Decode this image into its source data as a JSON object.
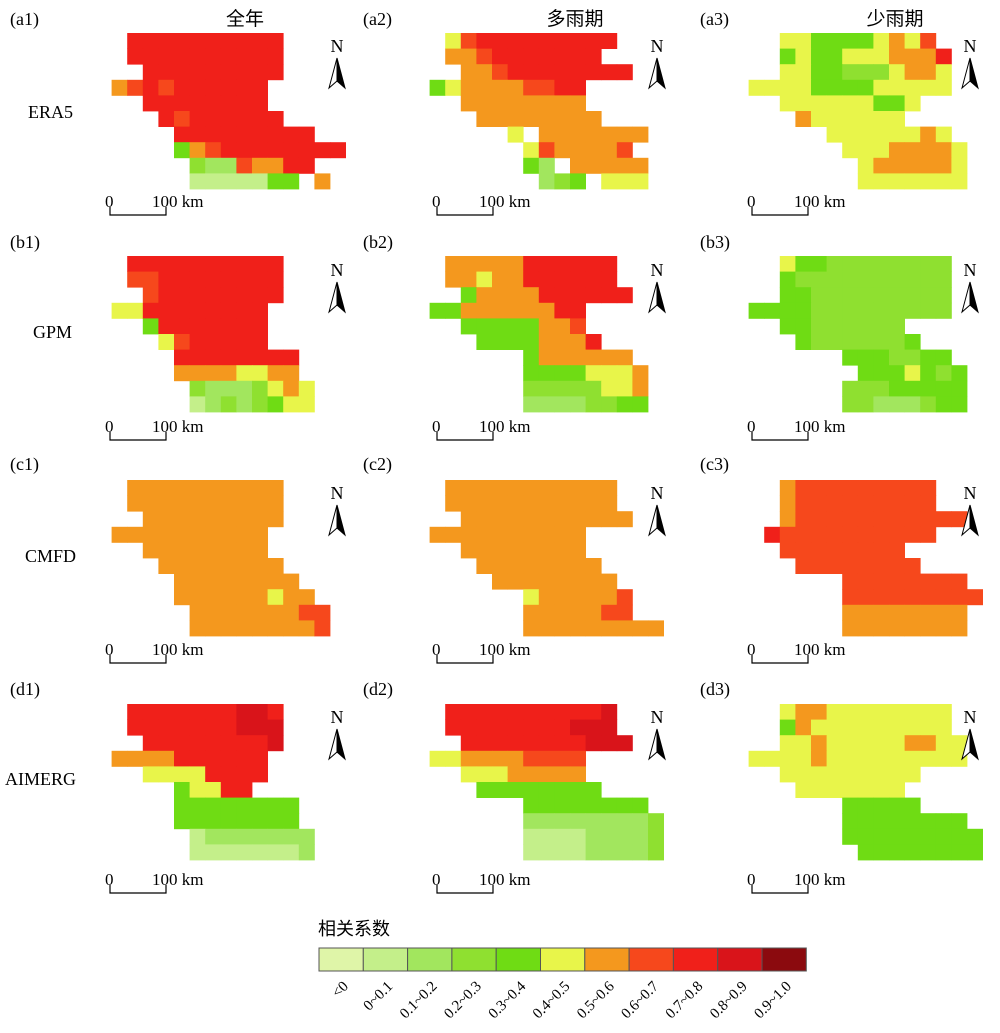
{
  "panels": {
    "a1": "(a1)",
    "a2": "(a2)",
    "a3": "(a3)",
    "b1": "(b1)",
    "b2": "(b2)",
    "b3": "(b3)",
    "c1": "(c1)",
    "c2": "(c2)",
    "c3": "(c3)",
    "d1": "(d1)",
    "d2": "(d2)",
    "d3": "(d3)"
  },
  "columns": [
    "全年",
    "多雨期",
    "少雨期"
  ],
  "rows": [
    "ERA5",
    "GPM",
    "CMFD",
    "AIMERG"
  ],
  "north_label": "N",
  "scale_bar": {
    "zero": "0",
    "end": "100 km"
  },
  "legend": {
    "title": "相关系数",
    "classes": [
      {
        "label": "<0",
        "color": "#dff5a8"
      },
      {
        "label": "0~0.1",
        "color": "#c4ef8a"
      },
      {
        "label": "0.1~0.2",
        "color": "#a2e65e"
      },
      {
        "label": "0.2~0.3",
        "color": "#8fe030"
      },
      {
        "label": "0.3~0.4",
        "color": "#6fdc14"
      },
      {
        "label": "0.4~0.5",
        "color": "#e8f54a"
      },
      {
        "label": "0.5~0.6",
        "color": "#f4981e"
      },
      {
        "label": "0.6~0.7",
        "color": "#f6481c"
      },
      {
        "label": "0.7~0.8",
        "color": "#f0201a"
      },
      {
        "label": "0.8~0.9",
        "color": "#d9141a"
      },
      {
        "label": "0.9~1.0",
        "color": "#8b0a0e"
      }
    ]
  },
  "grids": {
    "a1": [
      "..8888888888....",
      "..8888888888....",
      "...888888888....",
      ".6787888888.....",
      "...88888888.....",
      "....87888888....",
      ".....888888888..",
      ".....46788888888",
      "......32276688..",
      "......1111144.6."
    ],
    "a2": [
      "..57888888888...",
      "..6678888888....",
      "...66788888888..",
      ".4566667788.....",
      "...66666666.....",
      "....66666666....",
      "......5.6666666.",
      ".......5766667..",
      ".......42.66666.",
      "........234.555."
    ],
    "a3": [
      "...5544445657...",
      "...45445556668..",
      "...55443335665..",
      ".5555444455555..",
      "...555555445....",
      "....6555555.....",
      "......55555565..",
      ".......55566665.",
      "........5666665.",
      "........5555555."
    ],
    "b1": [
      "..8888888888....",
      "..7788888888....",
      "...788888888....",
      ".5588888888.....",
      "...48888888.....",
      "....5788888.....",
      ".....88888888...",
      ".....66665566...",
      "......32223565..",
      "......12323455.."
    ],
    "b2": [
      "..66666888888...",
      "..66566888888...",
      "...46666888888..",
      ".4466666688.....",
      "...44444667.....",
      "....44446668....",
      ".......4666666..",
      ".......44445556.",
      ".......33333556.",
      ".......22223344."
    ],
    "b3": [
      "...54433333333..",
      "...43333333333..",
      "...44333333333..",
      ".4444333333333..",
      "...44333333.....",
      "....43333334....",
      ".......4443344..",
      "........4445434.",
      ".......33344444.",
      ".......33222344."
    ],
    "c1": [
      "..6666666666....",
      "..6666666666....",
      "...666666666....",
      ".6666666666.....",
      "...66666666.....",
      "....66666666....",
      ".....66666666...",
      ".....666666566..",
      "......666666677.",
      "......666666667."
    ],
    "c2": [
      "..66666666666...",
      "..66666666666...",
      "...66666666666..",
      ".6666666666.....",
      "...66666666.....",
      "....66666666....",
      ".....66666666...",
      ".......5666667..",
      ".......6666677..",
      ".......666666666"
    ],
    "c3": [
      "...6777777777...",
      "...6777777777...",
      "...677777777777",
      "..87777777777...",
      "...77777777.....",
      "....77777777....",
      ".......77777777.",
      ".......777777777",
      ".......66666666.",
      ".......66666666."
    ],
    "d1": [
      "..8888888998....",
      "..8888888999....",
      "...888888889....",
      ".6666888888.....",
      "...55558888.....",
      ".....45588......",
      ".....44444444...",
      ".....44444444...",
      "......12222222..",
      "......11111112.."
    ],
    "d2": [
      "..88888888889...",
      "..88888888999...",
      "...88888888999..",
      ".5566667777.....",
      "...55566666.....",
      "....44444444....",
      ".......44444444.",
      ".......222222223",
      ".......111122223",
      ".......111122223"
    ],
    "d3": [
      "...56655555555..",
      "...46555555555..",
      "...556555556655.",
      ".55556555555555.",
      "...555555555....",
      "....5555555.....",
      ".......44444....",
      ".......44444444.",
      ".......444444444",
      "........44444444"
    ]
  }
}
